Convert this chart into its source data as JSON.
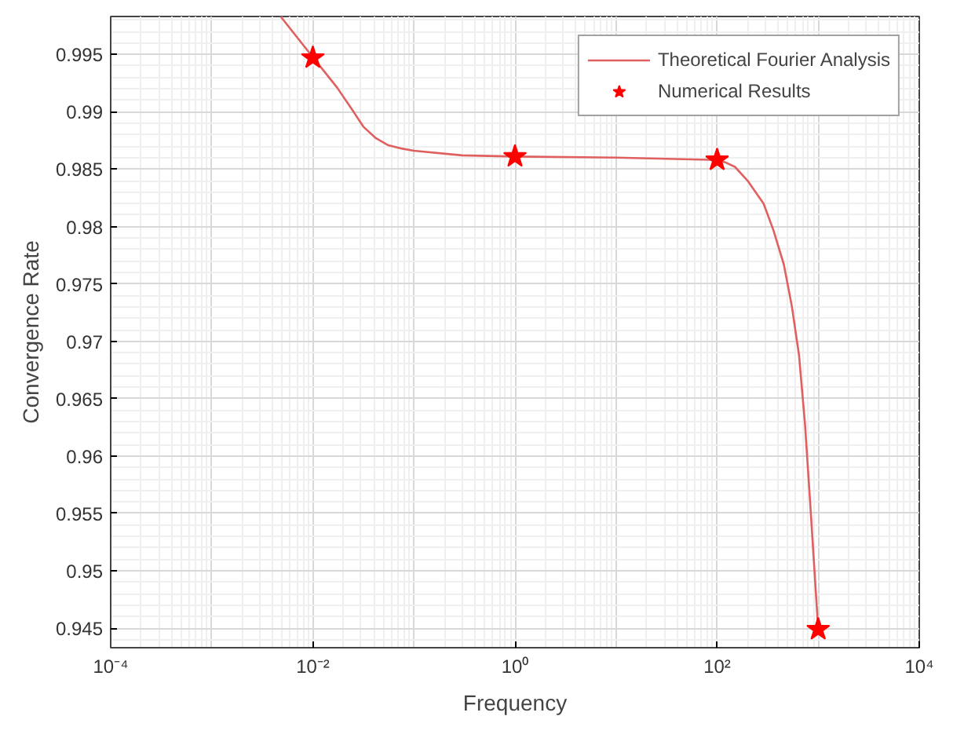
{
  "chart_data": {
    "type": "line",
    "xlabel": "Frequency",
    "ylabel": "Convergence Rate",
    "log": "x",
    "xlim": [
      0.0001,
      10000
    ],
    "ylim": [
      0.9433,
      0.9983
    ],
    "xticks": [
      {
        "value": 0.0001,
        "label": "10⁻⁴"
      },
      {
        "value": 0.01,
        "label": "10⁻²"
      },
      {
        "value": 1,
        "label": "10⁰"
      },
      {
        "value": 100,
        "label": "10²"
      },
      {
        "value": 10000,
        "label": "10⁴"
      }
    ],
    "yticks": [
      0.945,
      0.95,
      0.955,
      0.96,
      0.965,
      0.97,
      0.975,
      0.98,
      0.985,
      0.99,
      0.995
    ],
    "grid": true,
    "legend": "top right",
    "series": [
      {
        "name": "Theoretical Fourier Analysis",
        "color": "#e06060",
        "line_style": "solid",
        "x": [
          0.0048,
          0.0095,
          0.013,
          0.0174,
          0.024,
          0.0316,
          0.042,
          0.055,
          0.075,
          0.1,
          0.3,
          1,
          10,
          100,
          120,
          150,
          200,
          288,
          360,
          457,
          550,
          646,
          740,
          832,
          1000
        ],
        "values": [
          0.9983,
          0.995,
          0.9935,
          0.9921,
          0.9903,
          0.9887,
          0.9877,
          0.9871,
          0.9868,
          0.9866,
          0.9862,
          0.9861,
          0.986,
          0.9858,
          0.9856,
          0.9852,
          0.984,
          0.982,
          0.9797,
          0.9767,
          0.973,
          0.9688,
          0.9628,
          0.956,
          0.9449
        ]
      },
      {
        "name": "Numerical Results",
        "type": "scatter",
        "marker": "star",
        "color": "#ff0000",
        "x": [
          0.01,
          1,
          100,
          1000
        ],
        "values": [
          0.9947,
          0.9861,
          0.9858,
          0.9449
        ]
      }
    ]
  }
}
